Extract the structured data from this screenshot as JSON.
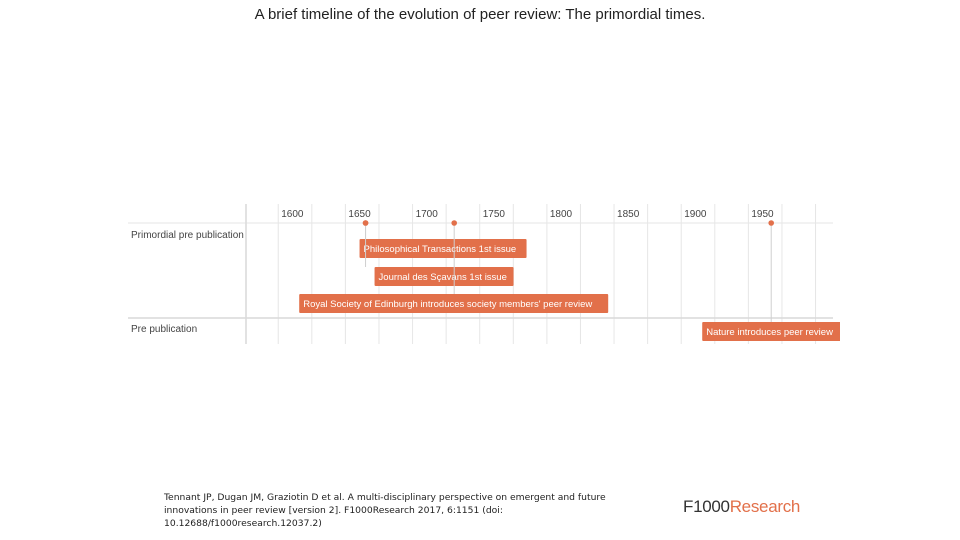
{
  "slide": {
    "title": "A brief timeline of the evolution of peer review: The primordial times."
  },
  "timeline": {
    "axis_years": [
      1600,
      1650,
      1700,
      1750,
      1800,
      1850,
      1900,
      1950
    ],
    "x_range": [
      1576,
      2013
    ],
    "rows": [
      {
        "label": "Primordial pre publication"
      },
      {
        "label": "Pre publication"
      }
    ],
    "events": [
      {
        "label": "Philosophical Transactions 1st issue",
        "year": 1665,
        "row": 0
      },
      {
        "label": "Journal des Sçavans 1st issue",
        "year": 1665,
        "row": 0
      },
      {
        "label": "Royal Society of Edinburgh introduces society members' peer review",
        "year": 1731,
        "row": 0
      },
      {
        "label": "Nature introduces peer review",
        "year": 1967,
        "row": 1
      }
    ],
    "colors": {
      "accent": "#e2704a",
      "grid": "#e6e6e6",
      "text": "#444444"
    }
  },
  "caption": {
    "line1": "Tennant JP, Dugan JM, Graziotin D et al. A multi-disciplinary perspective on emergent and future",
    "line2": "innovations in peer review [version 2]. F1000Research 2017, 6:1151 (doi:",
    "line3": "10.12688/f1000research.12037.2)"
  },
  "logo": {
    "part1": "F1000",
    "part2": "Research"
  }
}
